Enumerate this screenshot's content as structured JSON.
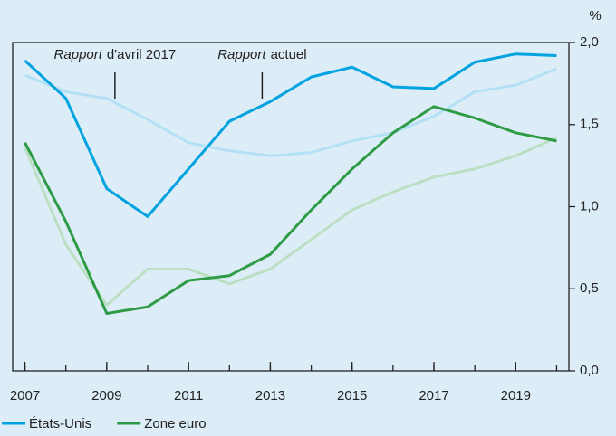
{
  "chart_data": {
    "type": "line",
    "unit": "%",
    "x": [
      2007,
      2008,
      2009,
      2010,
      2011,
      2012,
      2013,
      2014,
      2015,
      2016,
      2017,
      2018,
      2019,
      2020
    ],
    "xlim": [
      2006.7,
      2020.3
    ],
    "xticks": [
      2007,
      2009,
      2011,
      2013,
      2015,
      2017,
      2019
    ],
    "ylim": [
      0,
      2
    ],
    "yticks": [
      {
        "value": 0,
        "label": "0,0"
      },
      {
        "value": 0.5,
        "label": "0,5"
      },
      {
        "value": 1,
        "label": "1,0"
      },
      {
        "value": 1.5,
        "label": "1,5"
      },
      {
        "value": 2,
        "label": "2,0"
      }
    ],
    "y_axis_side": "right",
    "grid": false,
    "legend": "bottom-left",
    "series": [
      {
        "color": "#b3e0f5",
        "values": [
          1.8,
          1.7,
          1.66,
          1.53,
          1.39,
          1.34,
          1.31,
          1.33,
          1.4,
          1.45,
          1.55,
          1.7,
          1.74,
          1.84
        ]
      },
      {
        "color": "#bcdfc3",
        "values": [
          1.36,
          0.77,
          0.4,
          0.62,
          0.62,
          0.53,
          0.62,
          0.8,
          0.98,
          1.09,
          1.18,
          1.23,
          1.31,
          1.42
        ]
      },
      {
        "name": "États-Unis",
        "color": "#00a3e0",
        "values": [
          1.89,
          1.66,
          1.11,
          0.94,
          1.23,
          1.52,
          1.64,
          1.79,
          1.85,
          1.73,
          1.72,
          1.88,
          1.93,
          1.92
        ]
      },
      {
        "name": "Zone euro",
        "color": "#2e9b46",
        "values": [
          1.39,
          0.91,
          0.35,
          0.39,
          0.55,
          0.58,
          0.71,
          0.98,
          1.23,
          1.45,
          1.61,
          1.54,
          1.45,
          1.4
        ]
      }
    ],
    "annotations": [
      {
        "emphasis": "Rapport",
        "text": "d'avril 2017",
        "x": 2009.2
      },
      {
        "emphasis": "Rapport",
        "text": "actuel",
        "x": 2012.8
      }
    ]
  }
}
